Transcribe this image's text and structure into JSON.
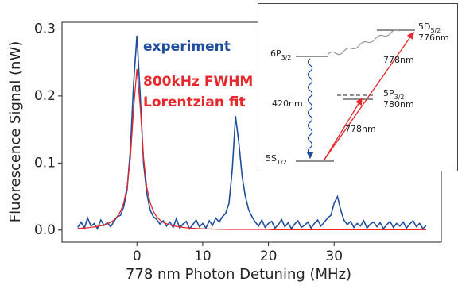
{
  "chart_data": {
    "type": "line",
    "xlabel": "778 nm Photon Detuning (MHz)",
    "ylabel": "Fluorescence Signal (nW)",
    "x": [
      -9,
      -8.5,
      -8,
      -7.5,
      -7,
      -6.5,
      -6,
      -5.5,
      -5,
      -4.5,
      -4,
      -3.5,
      -3,
      -2.5,
      -2,
      -1.5,
      -1,
      -0.5,
      0,
      0.5,
      1,
      1.5,
      2,
      2.5,
      3,
      3.5,
      4,
      4.5,
      5,
      5.5,
      6,
      6.5,
      7,
      7.5,
      8,
      8.5,
      9,
      9.5,
      10,
      10.5,
      11,
      11.5,
      12,
      12.5,
      13,
      13.5,
      14,
      14.5,
      15,
      15.5,
      16,
      16.5,
      17,
      17.5,
      18,
      18.5,
      19,
      19.5,
      20,
      20.5,
      21,
      21.5,
      22,
      22.5,
      23,
      23.5,
      24,
      24.5,
      25,
      25.5,
      26,
      26.5,
      27,
      27.5,
      28,
      28.5,
      29,
      29.5,
      30,
      30.5,
      31,
      31.5,
      32,
      32.5,
      33,
      33.5,
      34,
      34.5,
      35,
      35.5,
      36,
      36.5,
      37,
      37.5,
      38,
      38.5,
      39,
      39.5,
      40,
      40.5,
      41,
      41.5,
      42,
      42.5,
      43,
      43.5,
      44
    ],
    "series": [
      {
        "name": "experiment",
        "color": "#1f4e9c",
        "values": [
          0.004,
          0.012,
          0.003,
          0.018,
          0.006,
          0.01,
          0.002,
          0.015,
          0.007,
          0.011,
          0.005,
          0.013,
          0.02,
          0.022,
          0.035,
          0.06,
          0.12,
          0.22,
          0.29,
          0.2,
          0.1,
          0.055,
          0.03,
          0.02,
          0.016,
          0.009,
          0.014,
          0.006,
          0.012,
          0.004,
          0.017,
          0.003,
          0.009,
          0.013,
          0.002,
          0.008,
          0.015,
          0.005,
          0.01,
          0.003,
          0.014,
          0.007,
          0.018,
          0.012,
          0.02,
          0.025,
          0.04,
          0.09,
          0.17,
          0.13,
          0.08,
          0.05,
          0.03,
          0.02,
          0.012,
          0.006,
          0.015,
          0.004,
          0.01,
          0.013,
          0.003,
          0.008,
          0.016,
          0.005,
          0.011,
          0.002,
          0.009,
          0.014,
          0.004,
          0.007,
          0.012,
          0.003,
          0.01,
          0.015,
          0.006,
          0.012,
          0.018,
          0.022,
          0.04,
          0.05,
          0.03,
          0.015,
          0.008,
          0.013,
          0.004,
          0.01,
          0.006,
          0.014,
          0.003,
          0.009,
          0.012,
          0.005,
          0.011,
          0.002,
          0.008,
          0.013,
          0.004,
          0.01,
          0.006,
          0.012,
          0.003,
          0.009,
          0.014,
          0.005,
          0.01,
          0.002,
          0.007
        ]
      },
      {
        "name": "800kHz FWHM Lorentzian fit",
        "color": "#e8262b",
        "values": [
          0.0024,
          0.0027,
          0.003,
          0.0034,
          0.004,
          0.0046,
          0.0054,
          0.0064,
          0.0078,
          0.0096,
          0.0116,
          0.015,
          0.02,
          0.028,
          0.041,
          0.064,
          0.108,
          0.183,
          0.24,
          0.183,
          0.108,
          0.064,
          0.041,
          0.028,
          0.02,
          0.015,
          0.0116,
          0.0096,
          0.0078,
          0.0064,
          0.0054,
          0.0046,
          0.004,
          0.0034,
          0.003,
          0.0027,
          0.0024,
          0.0021,
          0.0019,
          0.0017,
          0.0016,
          0.0015,
          0.0014,
          0.0013,
          0.0012,
          0.0011,
          0.001,
          0.001,
          0.001,
          0.001,
          0.001,
          0.001,
          0.001,
          0.001,
          0.001,
          0.001,
          0.001,
          0.001,
          0.001,
          0.0005,
          0.0005,
          0.0005,
          0.0005,
          0.0005,
          0.0005,
          0.0005,
          0.0005,
          0.0005,
          0.0005,
          0.0005,
          0.0005,
          0.0005,
          0.0005,
          0.0005,
          0.0005,
          0.0005,
          0.0005,
          0.0005,
          0.0005,
          0.0005,
          0.0005,
          0.0005,
          0.0005,
          0.0005,
          0.0005,
          0.0005,
          0.0005,
          0.0005,
          0.0005,
          0.0005,
          0.0005,
          0.0005,
          0.0005,
          0.0005,
          0.0005,
          0.0005,
          0.0005,
          0.0005,
          0.0005,
          0.0005,
          0.0005,
          0.0005,
          0.0005,
          0.0005,
          0.0005,
          0.0005,
          0.0005
        ]
      }
    ],
    "xlim": [
      -11.4,
      46.3
    ],
    "xticks": [
      0,
      10,
      20,
      30
    ],
    "ylim": [
      -0.018,
      0.31
    ],
    "yticks": [
      {
        "value": 0,
        "label": "0.0"
      },
      0.1,
      0.2,
      0.3
    ]
  },
  "inset": {
    "levels": [
      {
        "name": "5D",
        "sub": "5/2",
        "note": "776nm"
      },
      {
        "name": "6P",
        "sub": "3/2"
      },
      {
        "name": "5P",
        "sub": "3/2",
        "note": "780nm"
      },
      {
        "name": "5S",
        "sub": "1/2"
      }
    ],
    "transitions": [
      "778nm",
      "420nm",
      "778nm"
    ]
  }
}
